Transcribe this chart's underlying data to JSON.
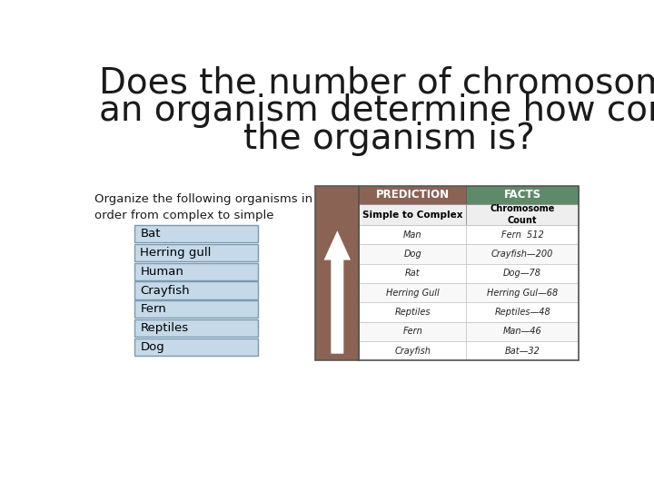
{
  "title_line1": "Does the number of chromosomes in",
  "title_line2": "an organism determine how complex",
  "title_line3": "the organism is?",
  "title_fontsize": 28,
  "title_color": "#1a1a1a",
  "background_color": "#ffffff",
  "subtitle_text": "Organize the following organisms in\norder from complex to simple",
  "subtitle_fontsize": 9.5,
  "list_items": [
    "Bat",
    "Herring gull",
    "Human",
    "Crayfish",
    "Fern",
    "Reptiles",
    "Dog"
  ],
  "list_box_color": "#c5d9e8",
  "list_border_color": "#7a9ab0",
  "list_text_color": "#000000",
  "table_header_bg1": "#8b6355",
  "table_header_bg2": "#5f8a6a",
  "table_header_text": "#ffffff",
  "table_col1_header": "PREDICTION",
  "table_col2_header": "FACTS",
  "table_subheader1": "Simple to Complex",
  "table_subheader2": "Chromosome\nCount",
  "table_rows_col1": [
    "Man",
    "Dog",
    "Rat",
    "Herring Gull",
    "Reptiles",
    "Fern",
    "Crayfish"
  ],
  "table_rows_col2": [
    "Fern  512",
    "Crayfish—200",
    "Dog—78",
    "Herring Gul—68",
    "Reptiles—48",
    "Man—46",
    "Bat—32"
  ],
  "arrow_color": "#ffffff",
  "arrow_bg_color": "#8b6355",
  "table_border_color": "#555555",
  "row_bg_even": "#ffffff",
  "row_bg_odd": "#f8f8f8"
}
